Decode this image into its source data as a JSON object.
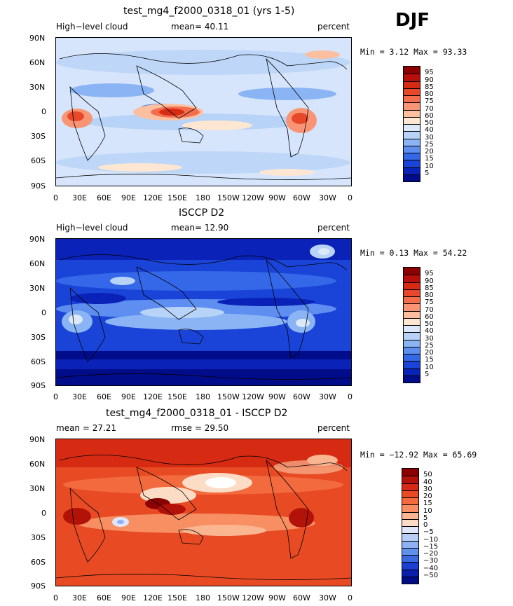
{
  "season": "DJF",
  "panels": [
    {
      "title": "test_mg4_f2000_0318_01 (yrs 1-5)",
      "left_label": "High−level cloud",
      "mean_label": "mean=  40.11",
      "units": "percent",
      "minmax": "Min =   3.12 Max =  93.33",
      "legend": {
        "labels": [
          "95",
          "90",
          "85",
          "80",
          "75",
          "70",
          "60",
          "50",
          "40",
          "30",
          "25",
          "20",
          "15",
          "10",
          "5"
        ],
        "colors": [
          "#8b0000",
          "#b80f0a",
          "#d62a12",
          "#e8482a",
          "#f46e4e",
          "#f99575",
          "#fcc0a0",
          "#fde7d3",
          "#dbe9fb",
          "#b8d3f8",
          "#8ab4f4",
          "#5d8ef0",
          "#3568e8",
          "#1a44d8",
          "#0a22b8",
          "#000c8a"
        ]
      },
      "lat_ticks": [
        "90N",
        "60N",
        "30N",
        "0",
        "30S",
        "60S",
        "90S"
      ],
      "lon_ticks": [
        "0",
        "30E",
        "60E",
        "90E",
        "120E",
        "150E",
        "180",
        "150W",
        "120W",
        "90W",
        "60W",
        "30W",
        "0"
      ]
    },
    {
      "title": "ISCCP D2",
      "left_label": "High−level cloud",
      "mean_label": "mean=  12.90",
      "units": "percent",
      "minmax": "Min =   0.13 Max =  54.22",
      "legend": {
        "labels": [
          "95",
          "90",
          "85",
          "80",
          "75",
          "70",
          "60",
          "50",
          "40",
          "30",
          "25",
          "20",
          "15",
          "10",
          "5"
        ],
        "colors": [
          "#8b0000",
          "#b80f0a",
          "#d62a12",
          "#e8482a",
          "#f46e4e",
          "#f99575",
          "#fcc0a0",
          "#fde7d3",
          "#dbe9fb",
          "#b8d3f8",
          "#8ab4f4",
          "#5d8ef0",
          "#3568e8",
          "#1a44d8",
          "#0a22b8",
          "#000c8a"
        ]
      },
      "lat_ticks": [
        "90N",
        "60N",
        "30N",
        "0",
        "30S",
        "60S",
        "90S"
      ],
      "lon_ticks": [
        "0",
        "30E",
        "60E",
        "90E",
        "120E",
        "150E",
        "180",
        "150W",
        "120W",
        "90W",
        "60W",
        "30W",
        "0"
      ]
    },
    {
      "title": "test_mg4_f2000_0318_01 - ISCCP D2",
      "left_label": "mean =  27.21",
      "mean_label": "rmse =  29.50",
      "units": "percent",
      "minmax": "Min = −12.92 Max =  65.69",
      "legend": {
        "labels": [
          "50",
          "40",
          "30",
          "20",
          "15",
          "10",
          "5",
          "0",
          "−5",
          "−10",
          "−15",
          "−20",
          "−30",
          "−40",
          "−50"
        ],
        "colors": [
          "#8b0000",
          "#b31208",
          "#d62a12",
          "#e84a24",
          "#f26a3e",
          "#f78f62",
          "#fab691",
          "#fddcc6",
          "#dfe6fb",
          "#b9ccf6",
          "#8fb0f2",
          "#6190ec",
          "#3a6ae2",
          "#1b40cf",
          "#0a1eae",
          "#000c84"
        ]
      },
      "lat_ticks": [
        "90N",
        "60N",
        "30N",
        "0",
        "30S",
        "60S",
        "90S"
      ],
      "lon_ticks": [
        "0",
        "30E",
        "60E",
        "90E",
        "120E",
        "150E",
        "180",
        "150W",
        "120W",
        "90W",
        "60W",
        "30W",
        "0"
      ]
    }
  ]
}
